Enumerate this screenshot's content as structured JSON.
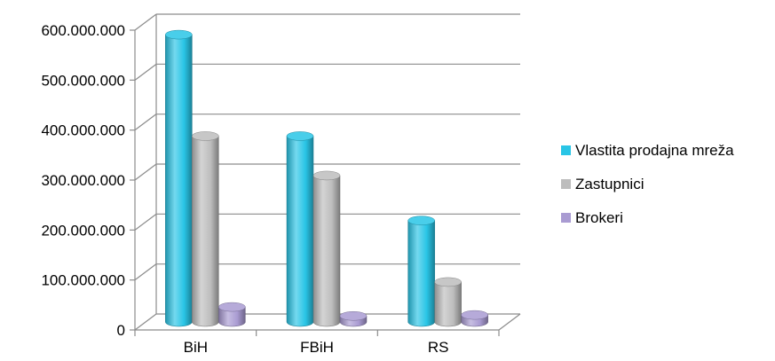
{
  "chart_data": {
    "type": "bar",
    "categories": [
      "BiH",
      "FBiH",
      "RS"
    ],
    "series": [
      {
        "name": "Vlastita prodajna mreža",
        "values": [
          575000000,
          372000000,
          203000000
        ],
        "color": "#29C5E6"
      },
      {
        "name": "Zastupnici",
        "values": [
          372000000,
          293000000,
          80000000
        ],
        "color": "#BDBDBD"
      },
      {
        "name": "Brokeri",
        "values": [
          30000000,
          12000000,
          14000000
        ],
        "color": "#A99BD2"
      }
    ],
    "y_ticks": [
      "0",
      "100.000.000",
      "200.000.000",
      "300.000.000",
      "400.000.000",
      "500.000.000",
      "600.000.000"
    ],
    "ylim": [
      0,
      600000000
    ],
    "grid": true,
    "legend_position": "right",
    "style": "3d-cylinder"
  }
}
